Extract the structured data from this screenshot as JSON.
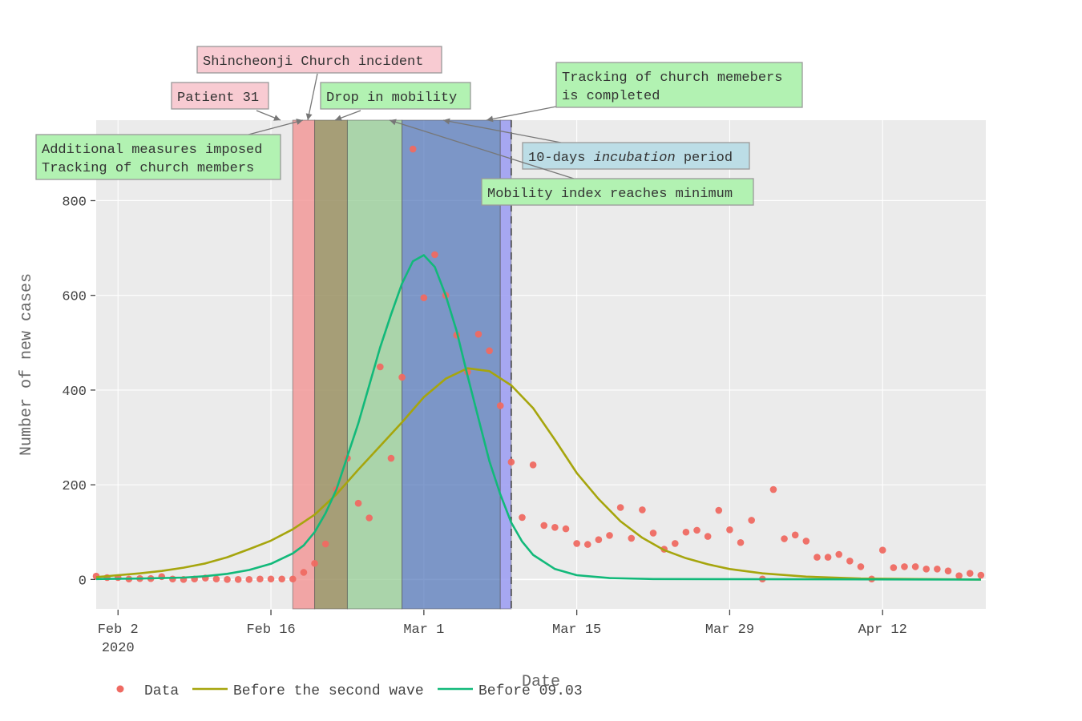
{
  "chart_data": {
    "type": "line",
    "x_axis": {
      "title": "Date",
      "range": [
        "2020-01-31",
        "2020-04-21"
      ],
      "ticks": [
        {
          "date": "2020-02-02",
          "label": "Feb 2",
          "sublabel": "2020"
        },
        {
          "date": "2020-02-16",
          "label": "Feb 16",
          "sublabel": ""
        },
        {
          "date": "2020-03-01",
          "label": "Mar 1",
          "sublabel": ""
        },
        {
          "date": "2020-03-15",
          "label": "Mar 15",
          "sublabel": ""
        },
        {
          "date": "2020-03-29",
          "label": "Mar 29",
          "sublabel": ""
        },
        {
          "date": "2020-04-12",
          "label": "Apr 12",
          "sublabel": ""
        }
      ]
    },
    "y_axis": {
      "title": "Number of new cases",
      "range": [
        -62,
        970
      ],
      "ticks": [
        0,
        200,
        400,
        600,
        800
      ]
    },
    "grid": true,
    "legend": {
      "position": "bottom-left",
      "orientation": "horizontal"
    },
    "series": [
      {
        "name": "Data",
        "mode": "markers",
        "color": "#ef6a62",
        "points": [
          [
            "2020-01-31",
            7
          ],
          [
            "2020-02-01",
            4
          ],
          [
            "2020-02-02",
            4
          ],
          [
            "2020-02-03",
            1
          ],
          [
            "2020-02-04",
            2
          ],
          [
            "2020-02-05",
            2
          ],
          [
            "2020-02-06",
            6
          ],
          [
            "2020-02-07",
            1
          ],
          [
            "2020-02-08",
            0
          ],
          [
            "2020-02-09",
            1
          ],
          [
            "2020-02-10",
            3
          ],
          [
            "2020-02-11",
            1
          ],
          [
            "2020-02-12",
            0
          ],
          [
            "2020-02-13",
            0
          ],
          [
            "2020-02-14",
            0
          ],
          [
            "2020-02-15",
            1
          ],
          [
            "2020-02-16",
            1
          ],
          [
            "2020-02-17",
            1
          ],
          [
            "2020-02-18",
            1
          ],
          [
            "2020-02-19",
            15
          ],
          [
            "2020-02-20",
            34
          ],
          [
            "2020-02-21",
            75
          ],
          [
            "2020-02-22",
            190
          ],
          [
            "2020-02-23",
            256
          ],
          [
            "2020-02-24",
            161
          ],
          [
            "2020-02-25",
            130
          ],
          [
            "2020-02-26",
            449
          ],
          [
            "2020-02-27",
            256
          ],
          [
            "2020-02-28",
            427
          ],
          [
            "2020-02-29",
            909
          ],
          [
            "2020-03-01",
            595
          ],
          [
            "2020-03-02",
            686
          ],
          [
            "2020-03-03",
            600
          ],
          [
            "2020-03-04",
            516
          ],
          [
            "2020-03-05",
            438
          ],
          [
            "2020-03-06",
            518
          ],
          [
            "2020-03-07",
            483
          ],
          [
            "2020-03-08",
            367
          ],
          [
            "2020-03-09",
            248
          ],
          [
            "2020-03-10",
            131
          ],
          [
            "2020-03-11",
            242
          ],
          [
            "2020-03-12",
            114
          ],
          [
            "2020-03-13",
            110
          ],
          [
            "2020-03-14",
            107
          ],
          [
            "2020-03-15",
            76
          ],
          [
            "2020-03-16",
            74
          ],
          [
            "2020-03-17",
            84
          ],
          [
            "2020-03-18",
            93
          ],
          [
            "2020-03-19",
            152
          ],
          [
            "2020-03-20",
            87
          ],
          [
            "2020-03-21",
            147
          ],
          [
            "2020-03-22",
            98
          ],
          [
            "2020-03-23",
            64
          ],
          [
            "2020-03-24",
            76
          ],
          [
            "2020-03-25",
            100
          ],
          [
            "2020-03-26",
            104
          ],
          [
            "2020-03-27",
            91
          ],
          [
            "2020-03-28",
            146
          ],
          [
            "2020-03-29",
            105
          ],
          [
            "2020-03-30",
            78
          ],
          [
            "2020-03-31",
            125
          ],
          [
            "2020-04-01",
            1
          ],
          [
            "2020-04-02",
            190
          ],
          [
            "2020-04-03",
            86
          ],
          [
            "2020-04-04",
            94
          ],
          [
            "2020-04-05",
            81
          ],
          [
            "2020-04-06",
            47
          ],
          [
            "2020-04-07",
            47
          ],
          [
            "2020-04-08",
            53
          ],
          [
            "2020-04-09",
            39
          ],
          [
            "2020-04-10",
            27
          ],
          [
            "2020-04-11",
            1
          ],
          [
            "2020-04-12",
            62
          ],
          [
            "2020-04-13",
            25
          ],
          [
            "2020-04-14",
            27
          ],
          [
            "2020-04-15",
            27
          ],
          [
            "2020-04-16",
            22
          ],
          [
            "2020-04-17",
            22
          ],
          [
            "2020-04-18",
            18
          ],
          [
            "2020-04-19",
            8
          ],
          [
            "2020-04-20",
            13
          ],
          [
            "2020-04-21",
            9
          ]
        ]
      },
      {
        "name": "Before the second wave",
        "mode": "lines",
        "color": "#a6a50d",
        "points": [
          [
            "2020-01-31",
            5
          ],
          [
            "2020-02-02",
            9
          ],
          [
            "2020-02-04",
            13
          ],
          [
            "2020-02-06",
            18
          ],
          [
            "2020-02-08",
            25
          ],
          [
            "2020-02-10",
            34
          ],
          [
            "2020-02-12",
            47
          ],
          [
            "2020-02-14",
            64
          ],
          [
            "2020-02-16",
            82
          ],
          [
            "2020-02-18",
            106
          ],
          [
            "2020-02-20",
            137
          ],
          [
            "2020-02-22",
            180
          ],
          [
            "2020-02-24",
            232
          ],
          [
            "2020-02-26",
            282
          ],
          [
            "2020-02-28",
            332
          ],
          [
            "2020-03-01",
            385
          ],
          [
            "2020-03-03",
            424
          ],
          [
            "2020-03-05",
            446
          ],
          [
            "2020-03-07",
            440
          ],
          [
            "2020-03-09",
            410
          ],
          [
            "2020-03-11",
            362
          ],
          [
            "2020-03-13",
            295
          ],
          [
            "2020-03-15",
            225
          ],
          [
            "2020-03-17",
            170
          ],
          [
            "2020-03-19",
            123
          ],
          [
            "2020-03-21",
            88
          ],
          [
            "2020-03-23",
            62
          ],
          [
            "2020-03-25",
            45
          ],
          [
            "2020-03-27",
            32
          ],
          [
            "2020-03-29",
            22
          ],
          [
            "2020-04-01",
            13
          ],
          [
            "2020-04-05",
            6
          ],
          [
            "2020-04-10",
            2
          ],
          [
            "2020-04-15",
            1
          ],
          [
            "2020-04-21",
            0
          ]
        ]
      },
      {
        "name": "Before 09.03",
        "mode": "lines",
        "color": "#12b97a",
        "points": [
          [
            "2020-01-31",
            1
          ],
          [
            "2020-02-04",
            2
          ],
          [
            "2020-02-08",
            4
          ],
          [
            "2020-02-10",
            7
          ],
          [
            "2020-02-12",
            12
          ],
          [
            "2020-02-14",
            20
          ],
          [
            "2020-02-16",
            33
          ],
          [
            "2020-02-18",
            55
          ],
          [
            "2020-02-19",
            72
          ],
          [
            "2020-02-20",
            100
          ],
          [
            "2020-02-21",
            140
          ],
          [
            "2020-02-22",
            190
          ],
          [
            "2020-02-23",
            260
          ],
          [
            "2020-02-24",
            330
          ],
          [
            "2020-02-25",
            410
          ],
          [
            "2020-02-26",
            490
          ],
          [
            "2020-02-27",
            560
          ],
          [
            "2020-02-28",
            625
          ],
          [
            "2020-02-29",
            672
          ],
          [
            "2020-03-01",
            685
          ],
          [
            "2020-03-02",
            660
          ],
          [
            "2020-03-03",
            600
          ],
          [
            "2020-03-04",
            525
          ],
          [
            "2020-03-05",
            430
          ],
          [
            "2020-03-06",
            340
          ],
          [
            "2020-03-07",
            250
          ],
          [
            "2020-03-08",
            180
          ],
          [
            "2020-03-09",
            120
          ],
          [
            "2020-03-10",
            80
          ],
          [
            "2020-03-11",
            52
          ],
          [
            "2020-03-13",
            22
          ],
          [
            "2020-03-15",
            9
          ],
          [
            "2020-03-18",
            3
          ],
          [
            "2020-03-22",
            1
          ],
          [
            "2020-04-21",
            0
          ]
        ]
      }
    ],
    "shapes": [
      {
        "type": "rect",
        "x0": "2020-02-18",
        "x1": "2020-02-20",
        "fill": "#f29494",
        "opacity": 0.8
      },
      {
        "type": "rect",
        "x0": "2020-02-20",
        "x1": "2020-02-23",
        "fill": "#9a9163",
        "opacity": 0.85
      },
      {
        "type": "rect",
        "x0": "2020-02-23",
        "x1": "2020-02-28",
        "fill": "#94cc94",
        "opacity": 0.75
      },
      {
        "type": "rect",
        "x0": "2020-02-28",
        "x1": "2020-03-08",
        "fill": "#4d72b8",
        "opacity": 0.7
      },
      {
        "type": "rect",
        "x0": "2020-03-08",
        "x1": "2020-03-09",
        "fill": "#9a9bf2",
        "opacity": 0.85
      },
      {
        "type": "vline",
        "x": "2020-03-09",
        "dash": true
      }
    ],
    "annotations": [
      {
        "id": "patient31",
        "lines": [
          "Patient 31"
        ],
        "bg": "#f8cbd2",
        "arrow_x": "2020-02-18"
      },
      {
        "id": "shincheonji",
        "lines": [
          "Shincheonji Church incident"
        ],
        "bg": "#f8cbd2",
        "arrow_x": "2020-02-20"
      },
      {
        "id": "drop",
        "lines": [
          "Drop in mobility"
        ],
        "bg": "#b2f2b2",
        "arrow_x": "2020-02-23"
      },
      {
        "id": "tracking_done",
        "lines": [
          "Tracking of church memebers",
          "is completed"
        ],
        "bg": "#b2f2b2",
        "arrow_x": "2020-03-08"
      },
      {
        "id": "measures",
        "lines": [
          "Additional measures imposed",
          "Tracking of church members"
        ],
        "bg": "#b2f2b2",
        "arrow_x": "2020-02-20"
      },
      {
        "id": "incubation",
        "lines": [
          "10-days ",
          "incubation",
          " period"
        ],
        "bg": "#bcdde6",
        "arrow_x": "2020-03-03"
      },
      {
        "id": "mobility_min",
        "lines": [
          "Mobility index reaches minimum"
        ],
        "bg": "#b2f2b2",
        "arrow_x": "2020-02-28"
      }
    ]
  }
}
